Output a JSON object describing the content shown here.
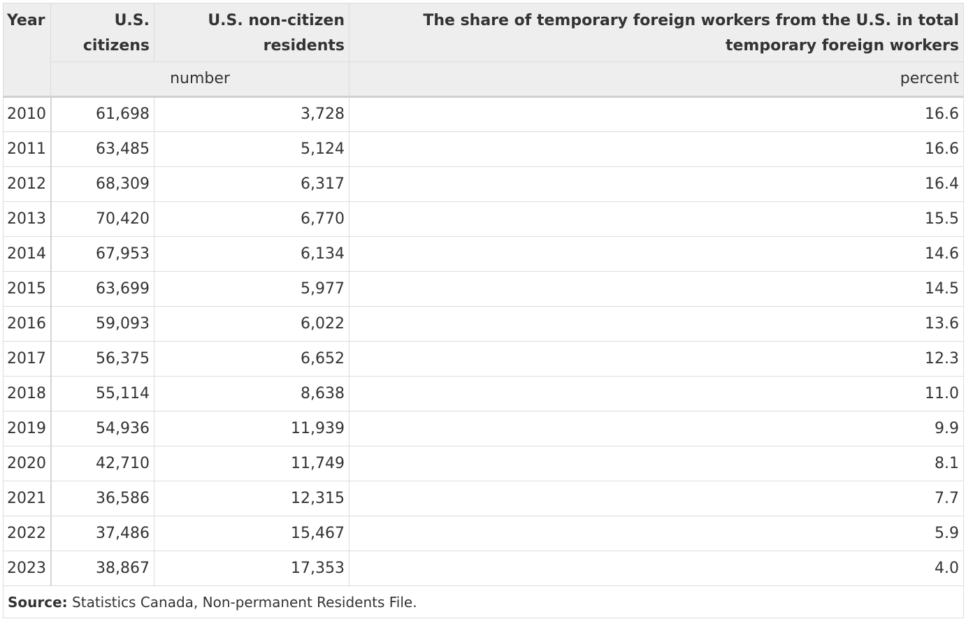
{
  "table": {
    "headers": {
      "year": "Year",
      "us_citizens": "U.S. citizens",
      "us_noncitizen": "U.S. non-citizen residents",
      "share": "The share of temporary foreign workers from the U.S. in total temporary foreign workers"
    },
    "units": {
      "number": "number",
      "percent": "percent"
    },
    "rows": [
      {
        "year": "2010",
        "citizens": "61,698",
        "noncitizens": "3,728",
        "share": "16.6"
      },
      {
        "year": "2011",
        "citizens": "63,485",
        "noncitizens": "5,124",
        "share": "16.6"
      },
      {
        "year": "2012",
        "citizens": "68,309",
        "noncitizens": "6,317",
        "share": "16.4"
      },
      {
        "year": "2013",
        "citizens": "70,420",
        "noncitizens": "6,770",
        "share": "15.5"
      },
      {
        "year": "2014",
        "citizens": "67,953",
        "noncitizens": "6,134",
        "share": "14.6"
      },
      {
        "year": "2015",
        "citizens": "63,699",
        "noncitizens": "5,977",
        "share": "14.5"
      },
      {
        "year": "2016",
        "citizens": "59,093",
        "noncitizens": "6,022",
        "share": "13.6"
      },
      {
        "year": "2017",
        "citizens": "56,375",
        "noncitizens": "6,652",
        "share": "12.3"
      },
      {
        "year": "2018",
        "citizens": "55,114",
        "noncitizens": "8,638",
        "share": "11.0"
      },
      {
        "year": "2019",
        "citizens": "54,936",
        "noncitizens": "11,939",
        "share": "9.9"
      },
      {
        "year": "2020",
        "citizens": "42,710",
        "noncitizens": "11,749",
        "share": "8.1"
      },
      {
        "year": "2021",
        "citizens": "36,586",
        "noncitizens": "12,315",
        "share": "7.7"
      },
      {
        "year": "2022",
        "citizens": "37,486",
        "noncitizens": "15,467",
        "share": "5.9"
      },
      {
        "year": "2023",
        "citizens": "38,867",
        "noncitizens": "17,353",
        "share": "4.0"
      }
    ],
    "footnote": {
      "label": "Source:",
      "text": " Statistics Canada, Non-permanent Residents File."
    }
  },
  "colors": {
    "header_bg": "#eeeeee",
    "border": "#dcdcdc",
    "text": "#333333"
  }
}
